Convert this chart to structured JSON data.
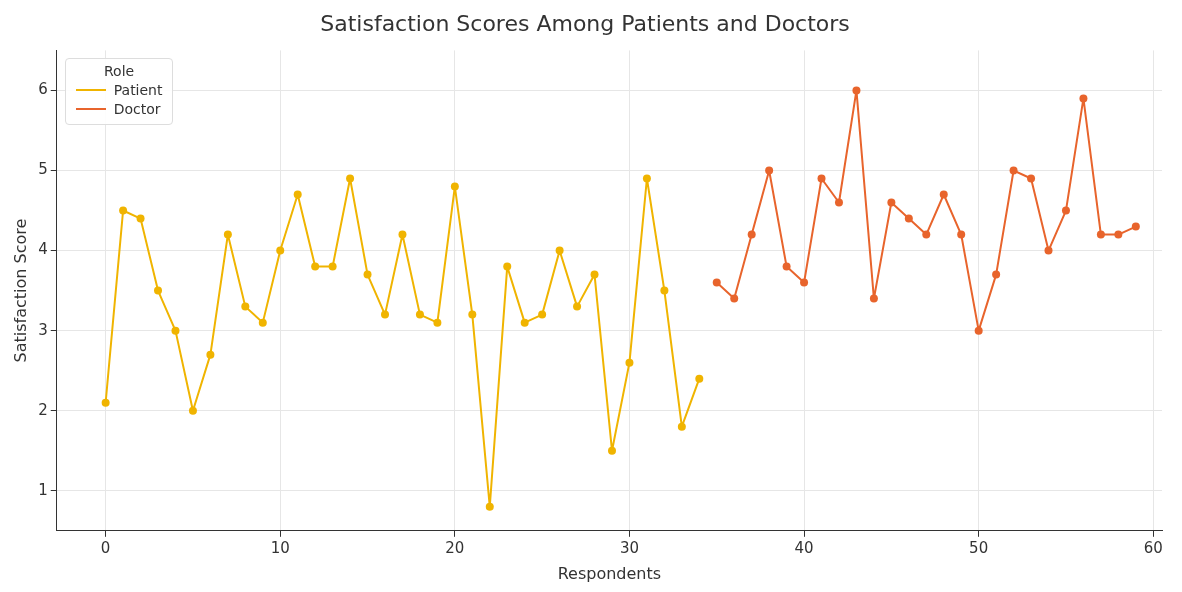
{
  "chart_data": {
    "type": "line",
    "title": "Satisfaction Scores Among Patients and Doctors",
    "xlabel": "Respondents",
    "ylabel": "Satisfaction Score",
    "legend_title": "Role",
    "legend": "top left",
    "grid": true,
    "marker": "circle",
    "line_style": "solid",
    "xlim": [
      -2.8,
      60.5
    ],
    "xticks": [
      0,
      10,
      20,
      30,
      40,
      50,
      60
    ],
    "ylim": [
      0.5,
      6.5
    ],
    "yticks": [
      1,
      2,
      3,
      4,
      5,
      6
    ],
    "series": [
      {
        "name": "Patient",
        "color": "#f0b400",
        "x": [
          0,
          1,
          2,
          3,
          4,
          5,
          6,
          7,
          8,
          9,
          10,
          11,
          12,
          13,
          14,
          15,
          16,
          17,
          18,
          19,
          20,
          21,
          22,
          23,
          24,
          25,
          26,
          27,
          28,
          29,
          30,
          31,
          32,
          33,
          34
        ],
        "values": [
          2.1,
          4.5,
          4.4,
          3.5,
          3.0,
          2.0,
          2.7,
          4.2,
          3.3,
          3.1,
          4.0,
          4.7,
          3.8,
          3.8,
          4.9,
          3.7,
          3.2,
          4.2,
          3.2,
          3.1,
          4.8,
          3.2,
          0.8,
          3.8,
          3.1,
          3.2,
          4.0,
          3.3,
          3.7,
          1.5,
          2.6,
          4.9,
          3.5,
          1.8,
          2.4
        ]
      },
      {
        "name": "Doctor",
        "color": "#e8642c",
        "x": [
          35,
          36,
          37,
          38,
          39,
          40,
          41,
          42,
          43,
          44,
          45,
          46,
          47,
          48,
          49,
          50,
          51,
          52,
          53,
          54,
          55,
          56,
          57,
          58,
          59
        ],
        "values": [
          3.6,
          3.4,
          4.2,
          5.0,
          3.8,
          3.6,
          4.9,
          4.6,
          6.0,
          3.4,
          4.6,
          4.4,
          4.2,
          4.7,
          4.2,
          3.0,
          3.7,
          5.0,
          4.9,
          4.0,
          4.5,
          5.9,
          4.2,
          4.2,
          4.3
        ]
      }
    ]
  }
}
